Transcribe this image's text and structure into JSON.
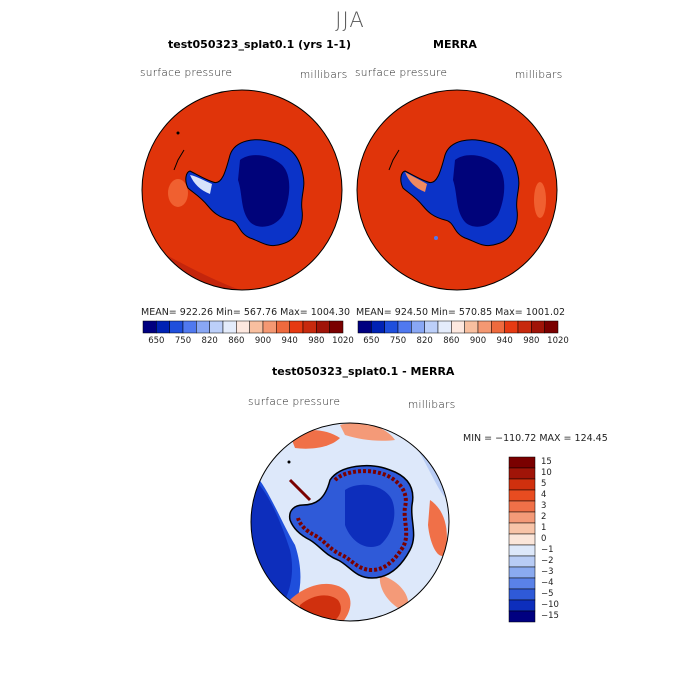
{
  "figure": {
    "title": "JJA"
  },
  "panels": {
    "left": {
      "title": "test050323_splat0.1 (yrs 1-1)",
      "variable": "surface pressure",
      "units": "millibars",
      "stats": "MEAN= 922.26   Min= 567.76   Max= 1004.30"
    },
    "right": {
      "title": "MERRA",
      "variable": "surface pressure",
      "units": "millibars",
      "stats": "MEAN= 924.50   Min= 570.85   Max= 1001.02"
    },
    "diff": {
      "title": "test050323_splat0.1 - MERRA",
      "variable": "surface pressure",
      "units": "millibars",
      "stats": "MIN = −110.72 MAX = 124.45"
    }
  },
  "colorbar_abs": {
    "ticks": [
      "650",
      "750",
      "820",
      "860",
      "900",
      "940",
      "980",
      "1020"
    ],
    "colors": [
      "#000080",
      "#0022b4",
      "#1f4fdc",
      "#5079ef",
      "#89a7f4",
      "#bccff9",
      "#e4ecfb",
      "#fde8df",
      "#f8bf9f",
      "#f49872",
      "#ee6a3e",
      "#e63a12",
      "#c72a0e",
      "#a01408",
      "#7a0000"
    ]
  },
  "colorbar_diff": {
    "ticks": [
      "15",
      "10",
      "5",
      "4",
      "3",
      "2",
      "1",
      "0",
      "−1",
      "−2",
      "−3",
      "−4",
      "−5",
      "−10",
      "−15"
    ],
    "colors": [
      "#7a0000",
      "#a01408",
      "#d0300e",
      "#e84c20",
      "#f07048",
      "#f49a78",
      "#f8c4a8",
      "#fbe6da",
      "#dde8fa",
      "#b8ccf5",
      "#8aaaf0",
      "#5a82e8",
      "#2f5ad8",
      "#0d2ebc",
      "#000080"
    ]
  }
}
